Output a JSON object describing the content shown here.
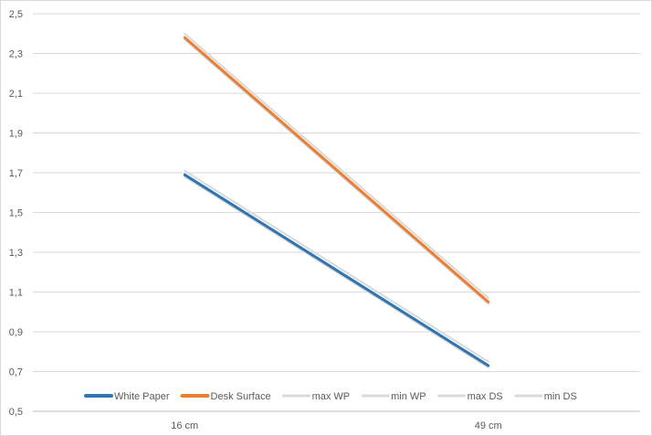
{
  "chart_data": {
    "type": "line",
    "title": "",
    "xlabel": "",
    "ylabel": "",
    "categories": [
      "16 cm",
      "49 cm"
    ],
    "ylim": [
      0.5,
      2.5
    ],
    "yticks": [
      "0,5",
      "0,7",
      "0,9",
      "1,1",
      "1,3",
      "1,5",
      "1,7",
      "1,9",
      "2,1",
      "2,3",
      "2,5"
    ],
    "ytick_values": [
      0.5,
      0.7,
      0.9,
      1.1,
      1.3,
      1.5,
      1.7,
      1.9,
      2.1,
      2.3,
      2.5
    ],
    "grid": true,
    "legend_position": "bottom",
    "series": [
      {
        "name": "White Paper",
        "values": [
          1.69,
          0.73
        ],
        "color": "#2e75b6",
        "width": 3
      },
      {
        "name": "Desk Surface",
        "values": [
          2.38,
          1.05
        ],
        "color": "#ed7d31",
        "width": 3
      },
      {
        "name": "max WP",
        "values": [
          1.71,
          0.75
        ],
        "color": "#d9d9d9",
        "width": 2
      },
      {
        "name": "min WP",
        "values": [
          1.68,
          0.72
        ],
        "color": "#d9d9d9",
        "width": 2
      },
      {
        "name": "max DS",
        "values": [
          2.4,
          1.07
        ],
        "color": "#d9d9d9",
        "width": 2
      },
      {
        "name": "min DS",
        "values": [
          2.37,
          1.04
        ],
        "color": "#d9d9d9",
        "width": 2
      }
    ]
  }
}
